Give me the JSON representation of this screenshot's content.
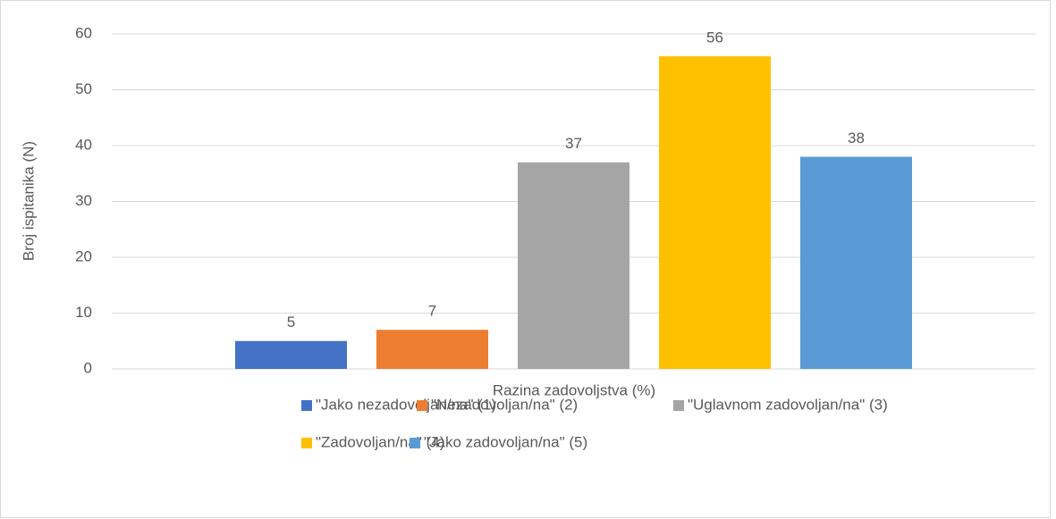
{
  "chart_data": {
    "type": "bar",
    "x_label": "Razina zadovoljstva (%)",
    "y_label": "Broj ispitanika (N)",
    "categories": [
      null
    ],
    "series": [
      {
        "name": "\"Jako nezadovoljan/na\" (1)",
        "color": "#4472c4",
        "values": [
          5
        ]
      },
      {
        "name": "\"Nezadovoljan/na\" (2)",
        "color": "#ed7d31",
        "values": [
          7
        ]
      },
      {
        "name": "\"Uglavnom zadovoljan/na\" (3)",
        "color": "#a5a5a5",
        "values": [
          37
        ]
      },
      {
        "name": "\"Zadovoljan/na\" (4)",
        "color": "#ffc000",
        "values": [
          56
        ]
      },
      {
        "name": "\"Jako zadovoljan/na\" (5)",
        "color": "#5b9bd5",
        "values": [
          38
        ]
      }
    ],
    "ylim": [
      0,
      60
    ],
    "yticks": [
      0,
      10,
      20,
      30,
      40,
      50,
      60
    ],
    "grid": true,
    "legend": "bottom"
  }
}
